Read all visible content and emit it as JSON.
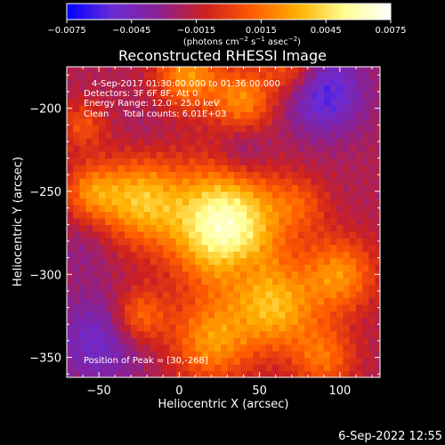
{
  "figure": {
    "title": "Reconstructed RHESSI Image",
    "timestamp": "6-Sep-2022 12:55",
    "info_lines": [
      "4-Sep-2017 01:30:00.000 to 01:36:00.000",
      "Detectors: 3F 6F 8F, Att 0",
      "Energy Range: 12.0 - 25.0 keV",
      "Clean     Total counts: 6.01E+03"
    ],
    "peak_label": "Position of Peak = [30,-268]"
  },
  "colorbar": {
    "tick_labels": [
      "−0.0075",
      "−0.0045",
      "−0.0015",
      "0.0015",
      "0.0045",
      "0.0075"
    ],
    "range": [
      -0.0075,
      0.0075
    ],
    "colors": [
      "#0000ff",
      "#6a2cd6",
      "#8a2090",
      "#cc2020",
      "#ff5a00",
      "#ffb000",
      "#ffff90",
      "#ffffff"
    ],
    "unit_prefix": "(photons cm",
    "unit_exp1": "−2",
    "unit_mid": " s",
    "unit_exp2": "−1",
    "unit_mid2": " asec",
    "unit_exp3": "−2",
    "unit_suffix": ")"
  },
  "chart_data": {
    "type": "heatmap",
    "title": "Reconstructed RHESSI Image",
    "xlabel": "Heliocentric X (arcsec)",
    "ylabel": "Heliocentric Y (arcsec)",
    "xlim": [
      -70,
      125
    ],
    "ylim": [
      -362,
      -175
    ],
    "xticks": [
      -50,
      0,
      50,
      100
    ],
    "yticks": [
      -200,
      -250,
      -300,
      -350
    ],
    "xtick_labels": [
      "−50",
      "0",
      "50",
      "100"
    ],
    "ytick_labels": [
      "−200",
      "−250",
      "−300",
      "−350"
    ],
    "peak": [
      30,
      -268
    ],
    "peak_value": 0.0075,
    "colorbar_range": [
      -0.0075,
      0.0075
    ],
    "sources": [
      {
        "x": 28,
        "y": -270,
        "peak": 0.0075,
        "sigma": 24
      },
      {
        "x": -25,
        "y": -255,
        "peak": 0.0042,
        "sigma": 18
      },
      {
        "x": -55,
        "y": -250,
        "peak": 0.0025,
        "sigma": 12
      },
      {
        "x": 5,
        "y": -180,
        "peak": 0.0035,
        "sigma": 14
      },
      {
        "x": 40,
        "y": -195,
        "peak": 0.0032,
        "sigma": 14
      },
      {
        "x": 70,
        "y": -175,
        "peak": 0.0024,
        "sigma": 12
      },
      {
        "x": 60,
        "y": -320,
        "peak": 0.004,
        "sigma": 18
      },
      {
        "x": 100,
        "y": -300,
        "peak": 0.0033,
        "sigma": 16
      },
      {
        "x": 20,
        "y": -340,
        "peak": 0.0034,
        "sigma": 18
      },
      {
        "x": -25,
        "y": -325,
        "peak": 0.0028,
        "sigma": 12
      },
      {
        "x": 75,
        "y": -260,
        "peak": 0.002,
        "sigma": 12
      },
      {
        "x": -60,
        "y": -210,
        "peak": 0.0016,
        "sigma": 10
      },
      {
        "x": 90,
        "y": -350,
        "peak": 0.0024,
        "sigma": 14
      }
    ],
    "negatives": [
      {
        "x": 90,
        "y": -190,
        "depth": -0.006,
        "sigma": 18
      },
      {
        "x": 40,
        "y": -225,
        "depth": -0.004,
        "sigma": 12
      },
      {
        "x": -50,
        "y": -340,
        "depth": -0.005,
        "sigma": 20
      },
      {
        "x": 75,
        "y": -265,
        "depth": -0.003,
        "sigma": 10
      },
      {
        "x": -60,
        "y": -285,
        "depth": -0.003,
        "sigma": 12
      },
      {
        "x": 40,
        "y": -295,
        "depth": -0.003,
        "sigma": 8
      },
      {
        "x": -20,
        "y": -210,
        "depth": -0.0025,
        "sigma": 12
      }
    ],
    "baseline": -0.002
  }
}
